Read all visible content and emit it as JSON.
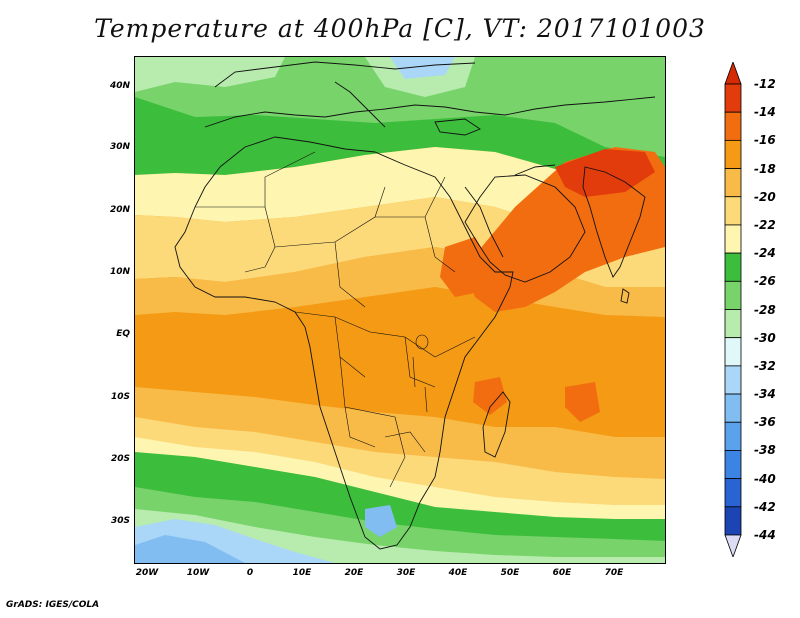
{
  "title": "Temperature at 400hPa [C], VT: 2017101003",
  "credit": "GrADS: IGES/COLA",
  "map": {
    "projection": "latlon",
    "lon_range": [
      -22,
      80
    ],
    "lat_range": [
      -38,
      45
    ],
    "lat_ticks": [
      {
        "value": 40,
        "label": "40N"
      },
      {
        "value": 30,
        "label": "30N"
      },
      {
        "value": 20,
        "label": "20N"
      },
      {
        "value": 10,
        "label": "10N"
      },
      {
        "value": 0,
        "label": "EQ"
      },
      {
        "value": -10,
        "label": "10S"
      },
      {
        "value": -20,
        "label": "20S"
      },
      {
        "value": -30,
        "label": "30S"
      }
    ],
    "lon_ticks": [
      {
        "value": -20,
        "label": "20W"
      },
      {
        "value": -10,
        "label": "10W"
      },
      {
        "value": 0,
        "label": "0"
      },
      {
        "value": 10,
        "label": "10E"
      },
      {
        "value": 20,
        "label": "20E"
      },
      {
        "value": 30,
        "label": "30E"
      },
      {
        "value": 40,
        "label": "40E"
      },
      {
        "value": 50,
        "label": "50E"
      },
      {
        "value": 60,
        "label": "60E"
      },
      {
        "value": 70,
        "label": "70E"
      }
    ]
  },
  "colorbar": {
    "orientation": "vertical",
    "levels": [
      {
        "label": "-12",
        "color": "#e23b0c"
      },
      {
        "label": "-14",
        "color": "#f26d10"
      },
      {
        "label": "-16",
        "color": "#f49a14"
      },
      {
        "label": "-18",
        "color": "#f8bb48"
      },
      {
        "label": "-20",
        "color": "#fcd979"
      },
      {
        "label": "-22",
        "color": "#fdf5b0"
      },
      {
        "label": "-24",
        "color": "#3cbe3c"
      },
      {
        "label": "-26",
        "color": "#78d36b"
      },
      {
        "label": "-28",
        "color": "#b7ecae"
      },
      {
        "label": "-30",
        "color": "#e1f8fb"
      },
      {
        "label": "-32",
        "color": "#aad7f7"
      },
      {
        "label": "-34",
        "color": "#82bdf1"
      },
      {
        "label": "-36",
        "color": "#5ba2ec"
      },
      {
        "label": "-38",
        "color": "#3c84e3"
      },
      {
        "label": "-40",
        "color": "#2a64d4"
      },
      {
        "label": "-42",
        "color": "#1c44b2"
      },
      {
        "label": "-44",
        "color": "#0b1a7a"
      }
    ],
    "top_arrow_color": "#d62a04",
    "bottom_arrow_color": "#dcdcf5"
  }
}
